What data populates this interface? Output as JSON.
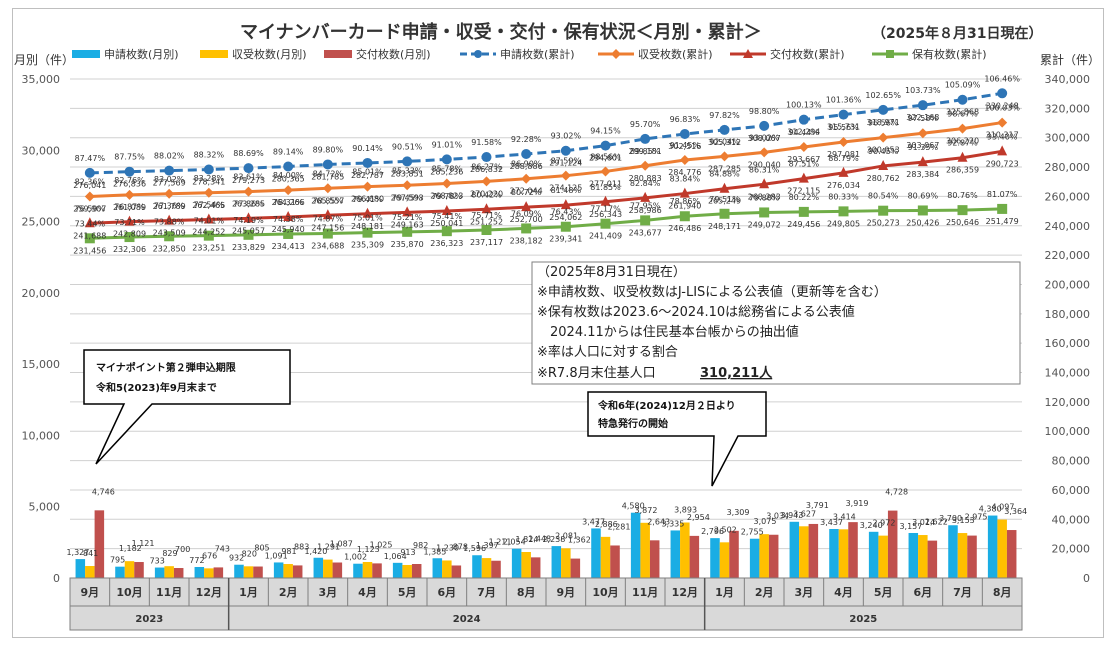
{
  "chart_data": {
    "type": "bar",
    "title": "マイナンバーカード申請・収受・交付・保有状況＜月別・累計＞",
    "subtitle": "（2025年８月31日現在）",
    "ylabel_left": "月別（件）",
    "ylabel_right": "累計（件）",
    "ylim_left": [
      0,
      35000
    ],
    "ylim_right": [
      0,
      340000
    ],
    "yticks_left": [
      "0",
      "5,000",
      "10,000",
      "15,000",
      "20,000",
      "25,000",
      "30,000",
      "35,000"
    ],
    "yticks_right": [
      "0",
      "20,000",
      "40,000",
      "60,000",
      "80,000",
      "100,000",
      "120,000",
      "140,000",
      "160,000",
      "180,000",
      "200,000",
      "220,000",
      "240,000",
      "260,000",
      "280,000",
      "300,000",
      "320,000",
      "340,000"
    ],
    "categories": [
      "9月",
      "10月",
      "11月",
      "12月",
      "1月",
      "2月",
      "3月",
      "4月",
      "5月",
      "6月",
      "7月",
      "8月",
      "9月",
      "10月",
      "11月",
      "12月",
      "1月",
      "2月",
      "3月",
      "4月",
      "5月",
      "6月",
      "7月",
      "8月"
    ],
    "year_groups": [
      {
        "label": "2023",
        "count": 4
      },
      {
        "label": "2024",
        "count": 12
      },
      {
        "label": "2025",
        "count": 8
      }
    ],
    "bar_series": [
      {
        "name": "申請枚数(月別)",
        "color": "#1AADE4",
        "values": [
          1327,
          795,
          733,
          772,
          932,
          1091,
          1420,
          1002,
          1064,
          1385,
          1596,
          2054,
          2238,
          3477,
          4580,
          3335,
          2796,
          2755,
          3943,
          3437,
          3240,
          3157,
          3700,
          4380
        ],
        "labels": [
          "1,327",
          "795",
          "733",
          "772",
          "932",
          "1,091",
          "1,420",
          "1,002",
          "1,064",
          "1,385",
          "1,596",
          "2,054",
          "2,238",
          "3,477",
          "4,580",
          "3,335",
          "2,796",
          "2,755",
          "3,943",
          "3,437",
          "3,240",
          "3,157",
          "3,700",
          "4,380"
        ]
      },
      {
        "name": "収受枚数(月別)",
        "color": "#FFC000",
        "values": [
          841,
          1182,
          829,
          676,
          820,
          981,
          1291,
          1123,
          913,
          1230,
          1397,
          1824,
          2081,
          2886,
          3872,
          3893,
          2502,
          3075,
          3627,
          3414,
          2972,
          3014,
          3153,
          4097
        ],
        "labels": [
          "841",
          "1,182",
          "829",
          "676",
          "820",
          "981",
          "1,291",
          "1,123",
          "913",
          "1,230",
          "1,397",
          "1,824",
          "2,081",
          "2,886",
          "3,872",
          "3,893",
          "2,502",
          "3,075",
          "3,627",
          "3,414",
          "2,972",
          "3,014",
          "3,153",
          "4,097"
        ]
      },
      {
        "name": "交付枚数(月別)",
        "color": "#C0504D",
        "values": [
          4746,
          1121,
          700,
          743,
          805,
          883,
          1087,
          1025,
          982,
          878,
          1211,
          1448,
          1362,
          2281,
          2643,
          2954,
          3309,
          3034,
          3791,
          3919,
          4728,
          2622,
          2975,
          3364
        ],
        "labels": [
          "4,746",
          "1,121",
          "700",
          "743",
          "805",
          "883",
          "1,087",
          "1,025",
          "982",
          "878",
          "1,211",
          "1,448",
          "1,362",
          "2,281",
          "2,643",
          "2,954",
          "3,309",
          "3,034",
          "3,791",
          "3,919",
          "4,728",
          "2,622",
          "2,975",
          "3,364"
        ]
      }
    ],
    "line_series": [
      {
        "name": "申請枚数(累計)",
        "color": "#2E75B6",
        "marker": "circle",
        "dashed": true,
        "values": [
          276041,
          276836,
          277569,
          278341,
          279273,
          280365,
          281785,
          282787,
          283851,
          285236,
          286832,
          288886,
          291124,
          294601,
          299181,
          302516,
          305312,
          308067,
          312294,
          315731,
          318971,
          322168,
          325868,
          330248
        ],
        "labels": [
          "276,041",
          "276,836",
          "277,569",
          "278,341",
          "279,273",
          "280,365",
          "281,785",
          "282,787",
          "283,851",
          "285,236",
          "286,832",
          "288,886",
          "291,124",
          "294,601",
          "299,181",
          "302,516",
          "305,312",
          "308,067",
          "312,294",
          "315,731",
          "318,971",
          "322,168",
          "325,868",
          "330,248"
        ],
        "rates": [
          "87.47%",
          "87.75%",
          "88.02%",
          "88.32%",
          "88.69%",
          "89.14%",
          "89.80%",
          "90.14%",
          "90.51%",
          "91.01%",
          "91.58%",
          "92.28%",
          "93.02%",
          "94.15%",
          "95.70%",
          "96.83%",
          "97.82%",
          "98.80%",
          "100.13%",
          "101.36%",
          "102.65%",
          "103.73%",
          "105.09%",
          "106.46%"
        ]
      },
      {
        "name": "収受枚数(累計)",
        "color": "#ED7D31",
        "marker": "diamond",
        "dashed": false,
        "values": [
          259907,
          261089,
          261789,
          262465,
          263285,
          264266,
          265557,
          266680,
          267593,
          268823,
          270220,
          272044,
          274125,
          277011,
          280883,
          284776,
          287285,
          290040,
          293667,
          297081,
          300053,
          303067,
          306220,
          310317
        ],
        "labels": [
          "259,907",
          "261,089",
          "261,789",
          "262,465",
          "263,285",
          "264,266",
          "265,557",
          "266,680",
          "267,593",
          "268,823",
          "270,220",
          "272,044",
          "274,125",
          "277,011",
          "280,883",
          "284,776",
          "287,285",
          "290,040",
          "293,667",
          "297,081",
          "300,053",
          "303,067",
          "306,220",
          "310,317"
        ],
        "rates": [
          "82.36%",
          "82.76%",
          "83.02%",
          "83.28%",
          "83.61%",
          "84.00%",
          "84.72%",
          "85.01%",
          "85.33%",
          "85.78%",
          "86.27%",
          "86.90%",
          "87.59%",
          "88.56%",
          "89.85%",
          "91.45%",
          "92.04%",
          "93.02%",
          "94.44%",
          "95.56%",
          "96.56%",
          "97.58%",
          "98.67%",
          "100.03%"
        ]
      },
      {
        "name": "交付枚数(累計)",
        "color": "#C0392B",
        "marker": "triangle",
        "dashed": false,
        "values": [
          241688,
          242809,
          243509,
          244252,
          245057,
          245940,
          247156,
          248181,
          249163,
          250041,
          251252,
          252700,
          254062,
          256343,
          258986,
          261940,
          265249,
          268283,
          272115,
          276034,
          280762,
          283384,
          286359,
          290723
        ],
        "labels": [
          "241,688",
          "242,809",
          "243,509",
          "244,252",
          "245,057",
          "245,940",
          "247,156",
          "248,181",
          "249,163",
          "250,041",
          "251,252",
          "252,700",
          "254,062",
          "256,343",
          "258,986",
          "261,940",
          "265,249",
          "268,283",
          "272,115",
          "276,034",
          "280,762",
          "283,384",
          "286,359",
          "290,723"
        ],
        "rates": [
          "76.59%",
          "76.87%",
          "77.36%",
          "77.54%",
          "77.86%",
          "78.31%",
          "78.85%",
          "79.41%",
          "79.45%",
          "79.78%",
          "80.42%",
          "80.72%",
          "81.48%",
          "81.85%",
          "82.84%",
          "83.84%",
          "84.88%",
          "86.31%",
          "87.51%",
          "88.79%",
          "90.45%",
          "91.35%",
          "92.87%",
          "93.40%"
        ]
      },
      {
        "name": "保有枚数(累計)",
        "color": "#70AD47",
        "marker": "square",
        "dashed": false,
        "values": [
          231456,
          232306,
          232850,
          233251,
          233829,
          234413,
          234688,
          235309,
          235870,
          236323,
          237117,
          238182,
          239341,
          241409,
          243677,
          246486,
          248171,
          249072,
          249456,
          249805,
          250273,
          250426,
          250646,
          251479
        ],
        "labels": [
          "231,456",
          "232,306",
          "232,850",
          "233,251",
          "233,829",
          "234,413",
          "234,688",
          "235,309",
          "235,870",
          "236,323",
          "237,117",
          "238,182",
          "239,341",
          "241,409",
          "243,677",
          "246,486",
          "248,171",
          "249,072",
          "249,456",
          "249,805",
          "250,273",
          "250,426",
          "250,646",
          "251,479"
        ],
        "rates": [
          "73.44%",
          "73.71%",
          "73.88%",
          "74.01%",
          "74.19%",
          "74.38%",
          "74.87%",
          "75.01%",
          "75.21%",
          "75.41%",
          "75.71%",
          "76.09%",
          "76.43%",
          "77.17%",
          "77.95%",
          "78.86%",
          "79.51%",
          "79.88%",
          "80.22%",
          "80.33%",
          "80.54%",
          "80.69%",
          "80.76%",
          "81.07%"
        ]
      }
    ],
    "annotations": {
      "note_lines": [
        "（2025年8月31日現在）",
        "※申請枚数、収受枚数はJ-LISによる公表値（更新等を含む）",
        "※保有枚数は2023.6～2024.10は総務省による公表値",
        "　2024.11からは住民基本台帳からの抽出値",
        "※率は人口に対する割合"
      ],
      "population_label": "※R7.8月末住基人口",
      "population_value": "310,211人",
      "callout1": [
        "マイナポイント第２弾申込期限",
        "令和5(2023)年9月末まで"
      ],
      "callout2": [
        "令和6年(2024)12月２日より",
        "特急発行の開始"
      ]
    }
  }
}
